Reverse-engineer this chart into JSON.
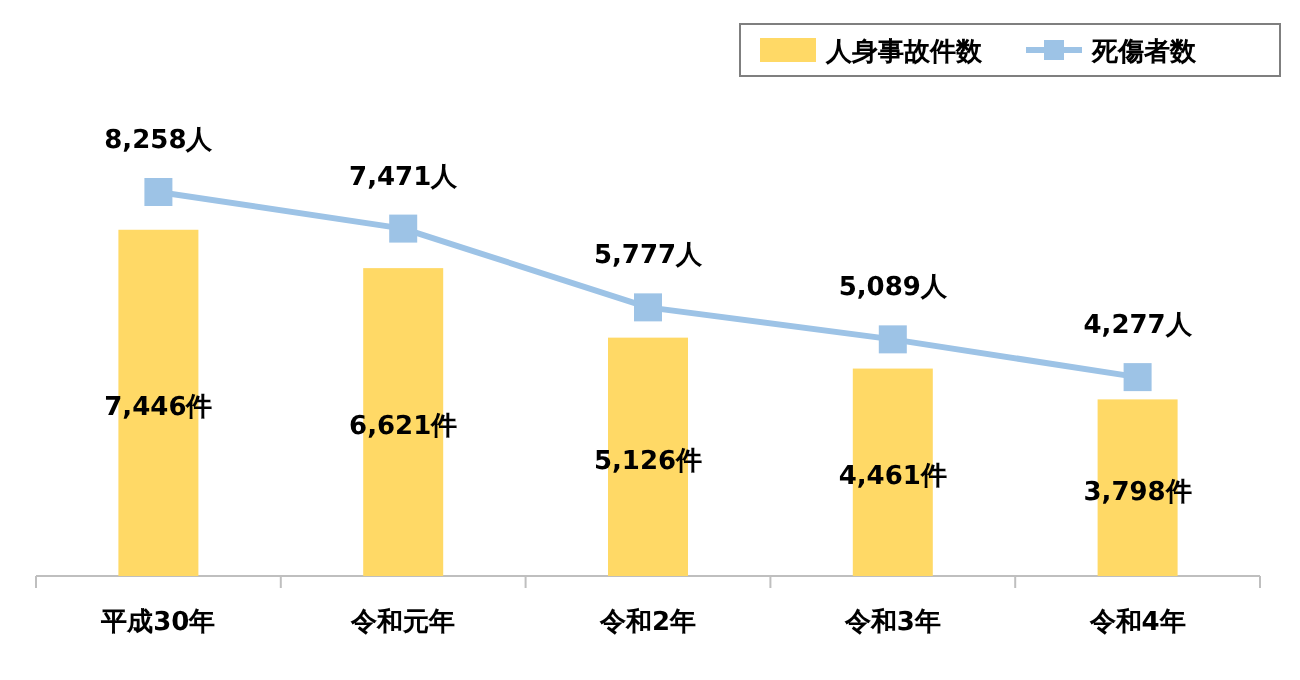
{
  "chart_data": {
    "type": "bar",
    "categories": [
      "平成30年",
      "令和元年",
      "令和2年",
      "令和3年",
      "令和4年"
    ],
    "series": [
      {
        "name": "人身事故件数",
        "color": "#ffd966",
        "values": [
          7446,
          6621,
          5126,
          4461,
          3798
        ],
        "value_labels": [
          "7,446件",
          "6,621件",
          "5,126件",
          "4,461件",
          "3,798件"
        ]
      },
      {
        "name": "死傷者数",
        "type": "line",
        "color": "#9dc3e6",
        "marker": "square",
        "values": [
          8258,
          7471,
          5777,
          5089,
          4277
        ],
        "value_labels": [
          "8,258人",
          "7,471人",
          "5,777人",
          "5,089人",
          "4,277人"
        ]
      }
    ],
    "legend": "top right"
  }
}
